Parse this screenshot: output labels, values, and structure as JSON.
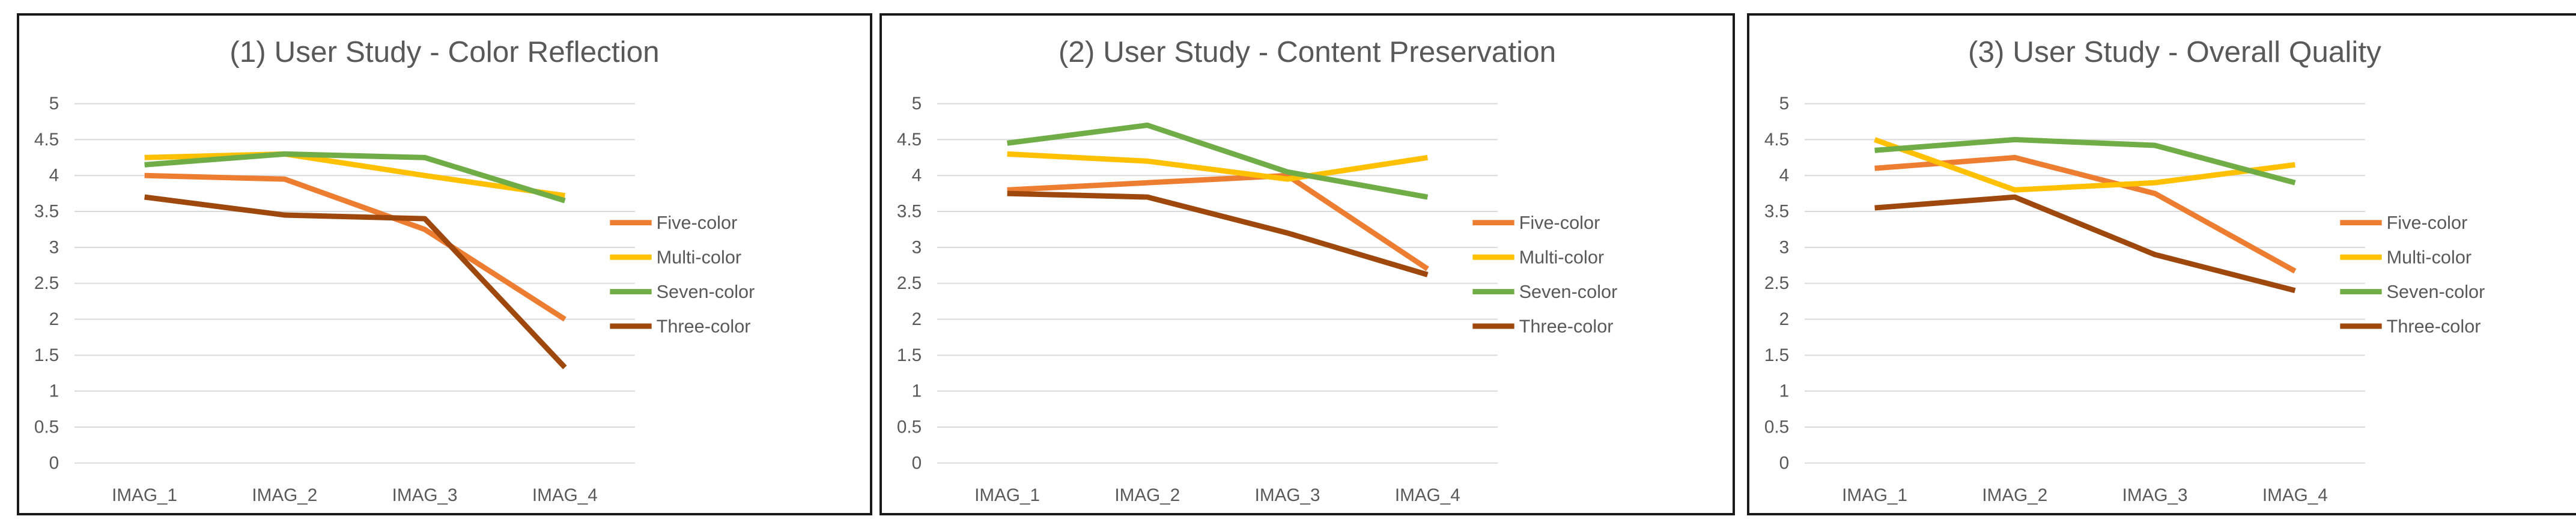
{
  "colors": {
    "Five-color": "#ED7D31",
    "Multi-color": "#FFC000",
    "Seven-color": "#70AD47",
    "Three-color": "#9E480E"
  },
  "chart_data": [
    {
      "type": "line",
      "title": "(1) User Study - Color Reflection",
      "categories": [
        "IMAG_1",
        "IMAG_2",
        "IMAG_3",
        "IMAG_4"
      ],
      "y_ticks": [
        "0",
        "0.5",
        "1",
        "1.5",
        "2",
        "2.5",
        "3",
        "3.5",
        "4",
        "4.5",
        "5"
      ],
      "ylim": [
        0,
        5
      ],
      "xlabel": "",
      "ylabel": "",
      "grid": true,
      "legend": "right",
      "series": [
        {
          "name": "Five-color",
          "values": [
            4.0,
            3.95,
            3.25,
            2.0
          ]
        },
        {
          "name": "Multi-color",
          "values": [
            4.25,
            4.3,
            4.0,
            3.72
          ]
        },
        {
          "name": "Seven-color",
          "values": [
            4.15,
            4.3,
            4.25,
            3.65
          ]
        },
        {
          "name": "Three-color",
          "values": [
            3.7,
            3.45,
            3.4,
            1.33
          ]
        }
      ]
    },
    {
      "type": "line",
      "title": "(2) User Study - Content Preservation",
      "categories": [
        "IMAG_1",
        "IMAG_2",
        "IMAG_3",
        "IMAG_4"
      ],
      "y_ticks": [
        "0",
        "0.5",
        "1",
        "1.5",
        "2",
        "2.5",
        "3",
        "3.5",
        "4",
        "4.5",
        "5"
      ],
      "ylim": [
        0,
        5
      ],
      "xlabel": "",
      "ylabel": "",
      "grid": true,
      "legend": "right",
      "series": [
        {
          "name": "Five-color",
          "values": [
            3.8,
            3.9,
            4.0,
            2.7
          ]
        },
        {
          "name": "Multi-color",
          "values": [
            4.3,
            4.2,
            3.95,
            4.25
          ]
        },
        {
          "name": "Seven-color",
          "values": [
            4.45,
            4.7,
            4.05,
            3.7
          ]
        },
        {
          "name": "Three-color",
          "values": [
            3.75,
            3.7,
            3.2,
            2.62
          ]
        }
      ]
    },
    {
      "type": "line",
      "title": "(3) User Study - Overall Quality",
      "categories": [
        "IMAG_1",
        "IMAG_2",
        "IMAG_3",
        "IMAG_4"
      ],
      "y_ticks": [
        "0",
        "0.5",
        "1",
        "1.5",
        "2",
        "2.5",
        "3",
        "3.5",
        "4",
        "4.5",
        "5"
      ],
      "ylim": [
        0,
        5
      ],
      "xlabel": "",
      "ylabel": "",
      "grid": true,
      "legend": "right",
      "series": [
        {
          "name": "Five-color",
          "values": [
            4.1,
            4.25,
            3.75,
            2.67
          ]
        },
        {
          "name": "Multi-color",
          "values": [
            4.5,
            3.8,
            3.9,
            4.15
          ]
        },
        {
          "name": "Seven-color",
          "values": [
            4.35,
            4.5,
            4.42,
            3.9
          ]
        },
        {
          "name": "Three-color",
          "values": [
            3.55,
            3.7,
            2.9,
            2.4
          ]
        }
      ]
    }
  ]
}
